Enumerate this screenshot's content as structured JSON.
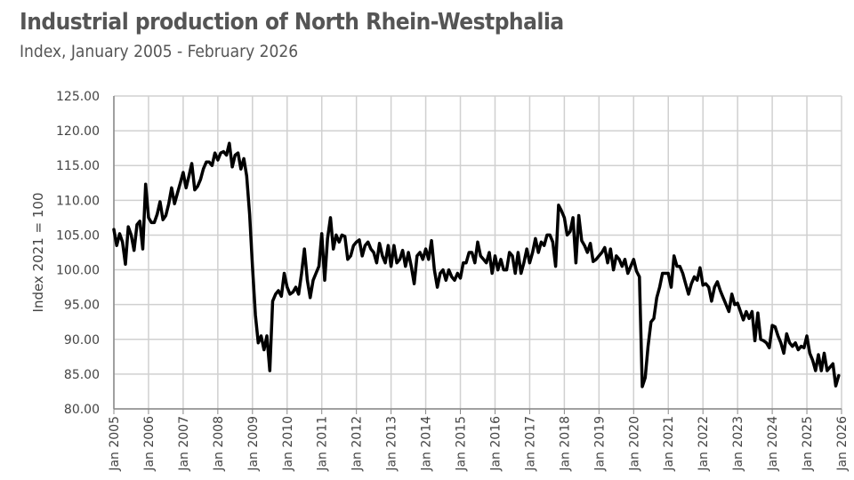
{
  "title": "Industrial production of  North Rhein-Westphalia",
  "subtitle": "Index, January 2005 - February 2026",
  "chart_data": {
    "type": "line",
    "title": "Industrial production of  North Rhein-Westphalia",
    "subtitle": "Index, January 2005 - February 2026",
    "xlabel": "",
    "ylabel": "Index 2021 = 100",
    "ylim": [
      80,
      125
    ],
    "yticks": [
      "80.00",
      "85.00",
      "90.00",
      "95.00",
      "100.00",
      "105.00",
      "110.00",
      "115.00",
      "120.00",
      "125.00"
    ],
    "xticks": [
      "Jan 2005",
      "Jan 2006",
      "Jan 2007",
      "Jan 2008",
      "Jan 2009",
      "Jan 2010",
      "Jan 2011",
      "Jan 2012",
      "Jan 2013",
      "Jan 2014",
      "Jan 2015",
      "Jan 2016",
      "Jan 2017",
      "Jan 2018",
      "Jan 2019",
      "Jan 2020",
      "Jan 2021",
      "Jan 2022",
      "Jan 2023",
      "Jan 2024",
      "Jan 2025",
      "Jan 2026"
    ],
    "grid": true,
    "line_color": "#000000",
    "series": [
      {
        "start": "Jan 2005",
        "frequency": "monthly",
        "values": [
          105.8,
          103.5,
          105.2,
          104.0,
          100.8,
          106.2,
          105.0,
          102.8,
          106.5,
          107.0,
          103.0,
          112.3,
          107.5,
          106.8,
          106.8,
          108.0,
          109.8,
          107.2,
          107.8,
          109.5,
          111.8,
          109.5,
          111.0,
          112.5,
          114.0,
          111.8,
          113.5,
          115.3,
          111.5,
          112.0,
          113.0,
          114.5,
          115.5,
          115.5,
          115.0,
          116.8,
          115.8,
          116.8,
          117.0,
          116.5,
          118.2,
          114.8,
          116.5,
          116.8,
          114.5,
          116.0,
          113.5,
          108.0,
          100.5,
          93.5,
          89.5,
          90.5,
          88.5,
          90.5,
          85.5,
          95.5,
          96.5,
          97.0,
          96.2,
          99.5,
          97.5,
          96.5,
          96.8,
          97.5,
          96.5,
          99.5,
          103.0,
          98.5,
          96.0,
          98.5,
          99.5,
          100.5,
          105.2,
          98.5,
          104.5,
          107.5,
          103.0,
          105.0,
          104.0,
          105.0,
          104.8,
          101.5,
          102.0,
          103.5,
          104.0,
          104.3,
          102.0,
          103.5,
          104.0,
          103.0,
          102.5,
          101.0,
          103.8,
          102.0,
          101.0,
          103.5,
          100.5,
          103.5,
          101.0,
          101.5,
          102.8,
          100.5,
          102.5,
          100.5,
          98.0,
          102.0,
          102.5,
          101.5,
          103.0,
          101.5,
          104.2,
          100.0,
          97.5,
          99.5,
          100.0,
          98.5,
          100.0,
          99.0,
          98.5,
          99.5,
          98.8,
          101.0,
          101.0,
          102.5,
          102.5,
          101.0,
          104.0,
          102.0,
          101.5,
          101.0,
          102.5,
          99.5,
          102.0,
          100.0,
          101.5,
          100.0,
          100.0,
          102.5,
          102.0,
          99.5,
          102.5,
          99.5,
          101.0,
          103.0,
          101.0,
          102.5,
          104.5,
          102.5,
          104.0,
          103.5,
          105.0,
          105.0,
          104.0,
          100.5,
          109.3,
          108.5,
          107.5,
          105.0,
          105.5,
          107.5,
          101.0,
          107.8,
          104.2,
          103.5,
          102.5,
          103.8,
          101.2,
          101.5,
          102.0,
          102.5,
          103.2,
          101.0,
          103.0,
          100.0,
          102.0,
          101.5,
          100.5,
          101.5,
          99.5,
          100.5,
          101.5,
          99.8,
          99.0,
          83.2,
          84.5,
          89.0,
          92.5,
          93.0,
          96.0,
          97.5,
          99.5,
          99.5,
          99.5,
          97.5,
          102.0,
          100.5,
          100.5,
          99.5,
          98.0,
          96.5,
          98.0,
          99.0,
          98.5,
          100.3,
          97.8,
          98.0,
          97.5,
          95.5,
          97.5,
          98.3,
          97.0,
          96.0,
          95.0,
          94.0,
          96.5,
          95.0,
          95.2,
          94.0,
          92.8,
          94.0,
          93.0,
          94.0,
          89.8,
          93.8,
          90.0,
          89.8,
          89.5,
          88.8,
          92.0,
          91.8,
          90.5,
          89.5,
          88.0,
          90.8,
          89.5,
          89.0,
          89.5,
          88.5,
          89.0,
          88.8,
          90.5,
          88.0,
          87.0,
          85.5,
          87.8,
          85.5,
          88.0,
          85.5,
          86.0,
          86.5,
          83.3,
          84.8
        ]
      }
    ]
  }
}
